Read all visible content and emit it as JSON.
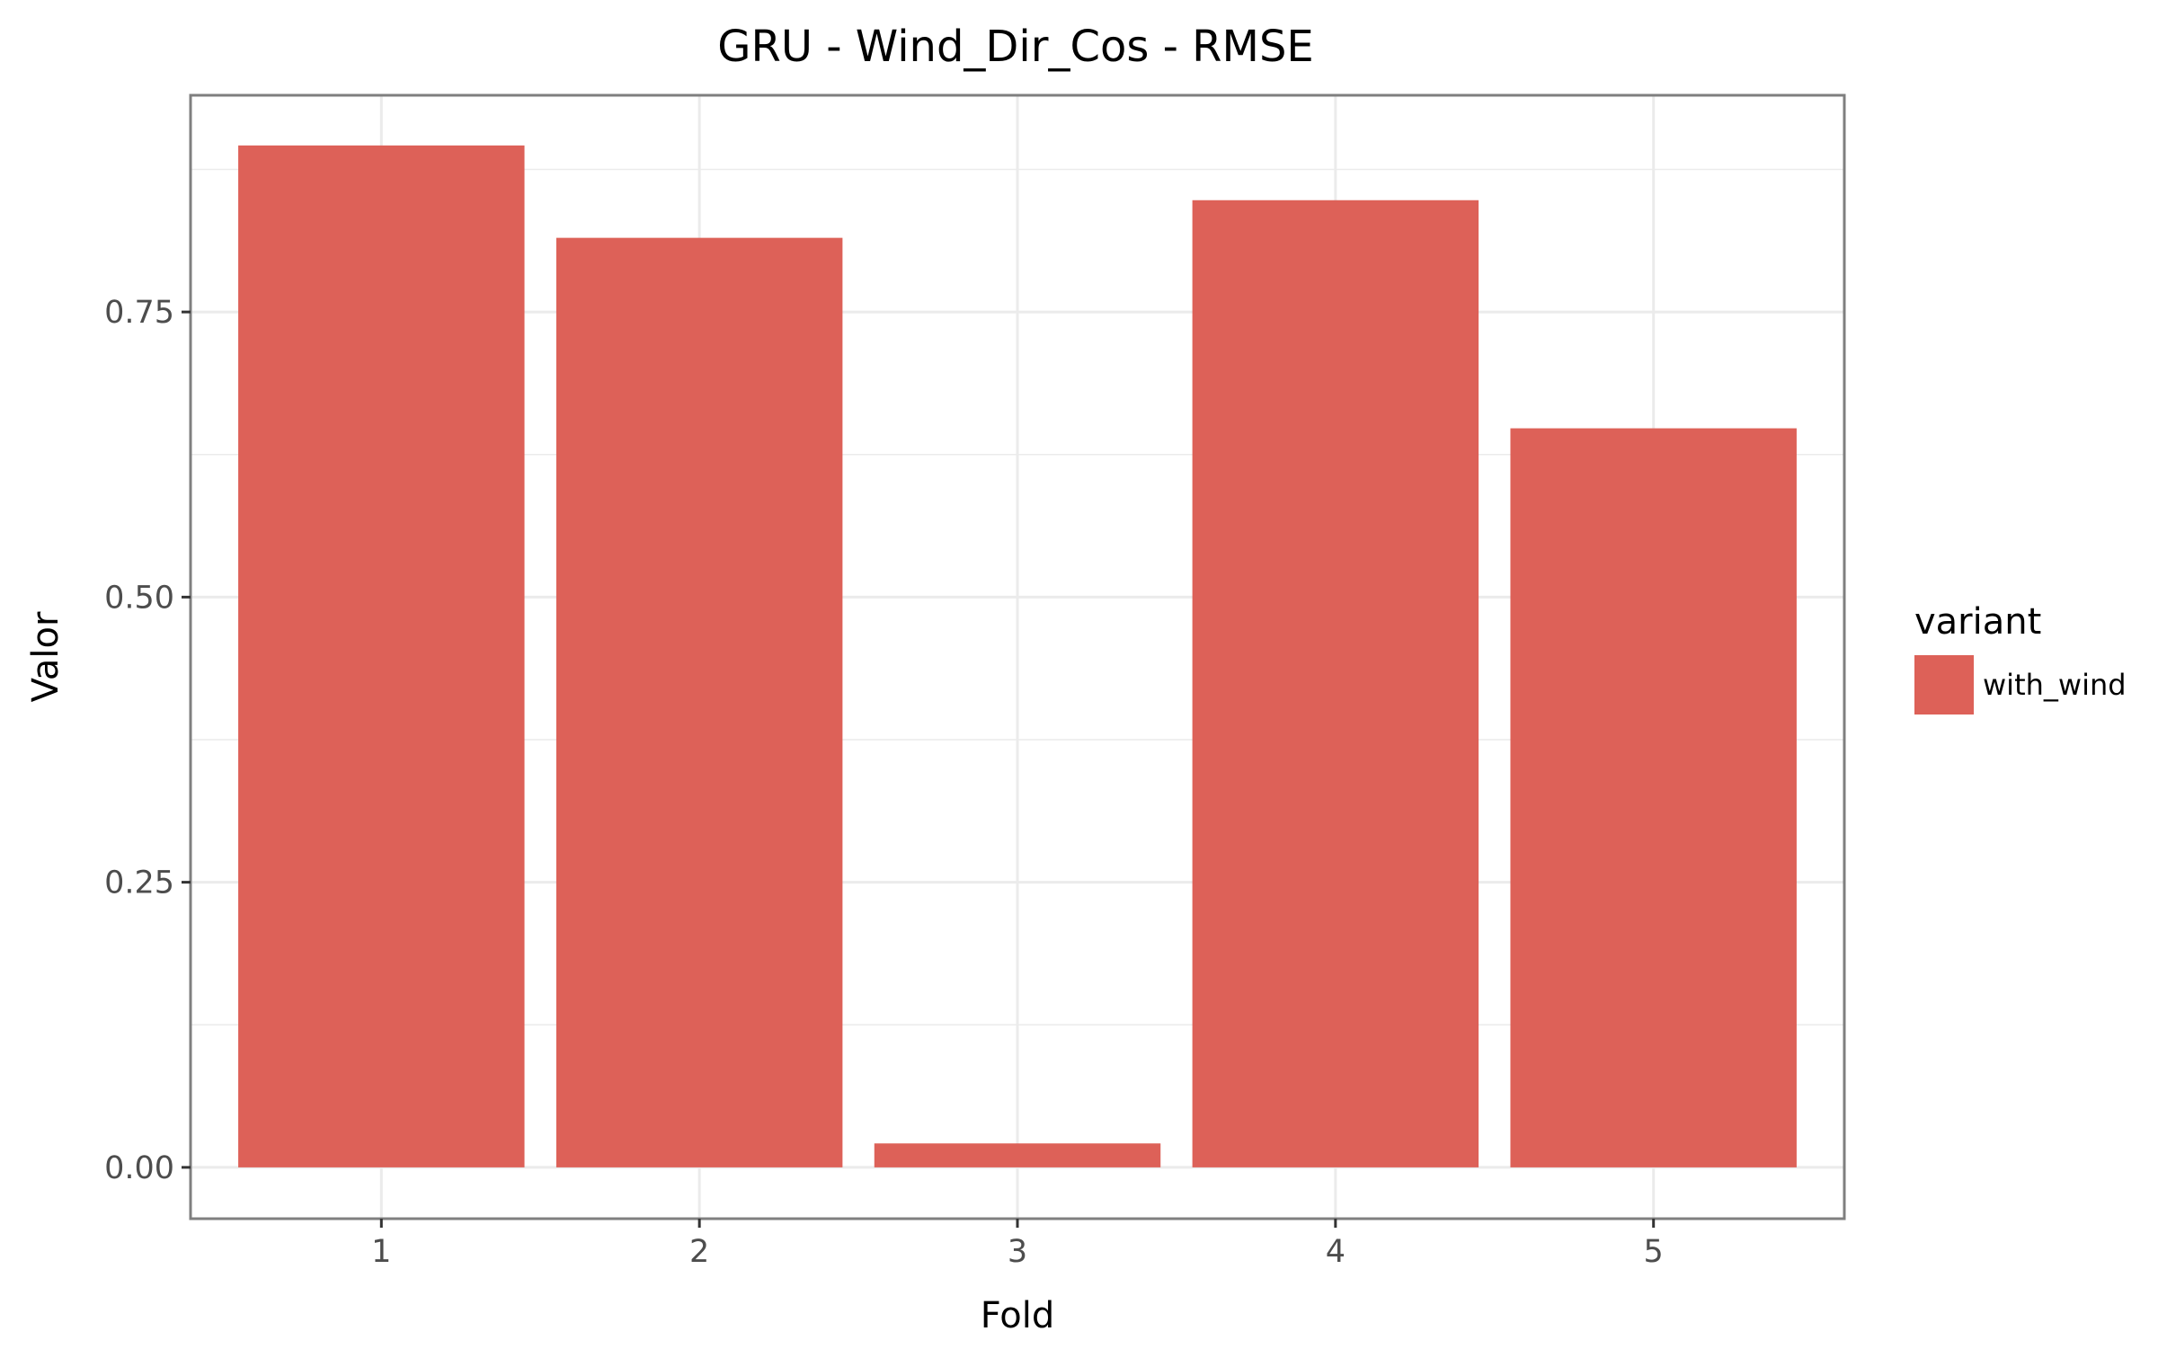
{
  "chart_data": {
    "type": "bar",
    "title": "GRU - Wind_Dir_Cos - RMSE",
    "xlabel": "Fold",
    "ylabel": "Valor",
    "categories": [
      "1",
      "2",
      "3",
      "4",
      "5"
    ],
    "series": [
      {
        "name": "with_wind",
        "color": "#dd6158",
        "values": [
          0.896,
          0.815,
          0.021,
          0.848,
          0.648
        ]
      }
    ],
    "ylim": [
      -0.045,
      0.94
    ],
    "yticks": [
      0.0,
      0.25,
      0.5,
      0.75
    ],
    "ytick_labels": [
      "0.00",
      "0.25",
      "0.50",
      "0.75"
    ],
    "legend": {
      "title": "variant",
      "position": "right"
    },
    "grid": true,
    "panel_border_color": "#7f7f7f",
    "grid_color": "#ebebeb"
  }
}
